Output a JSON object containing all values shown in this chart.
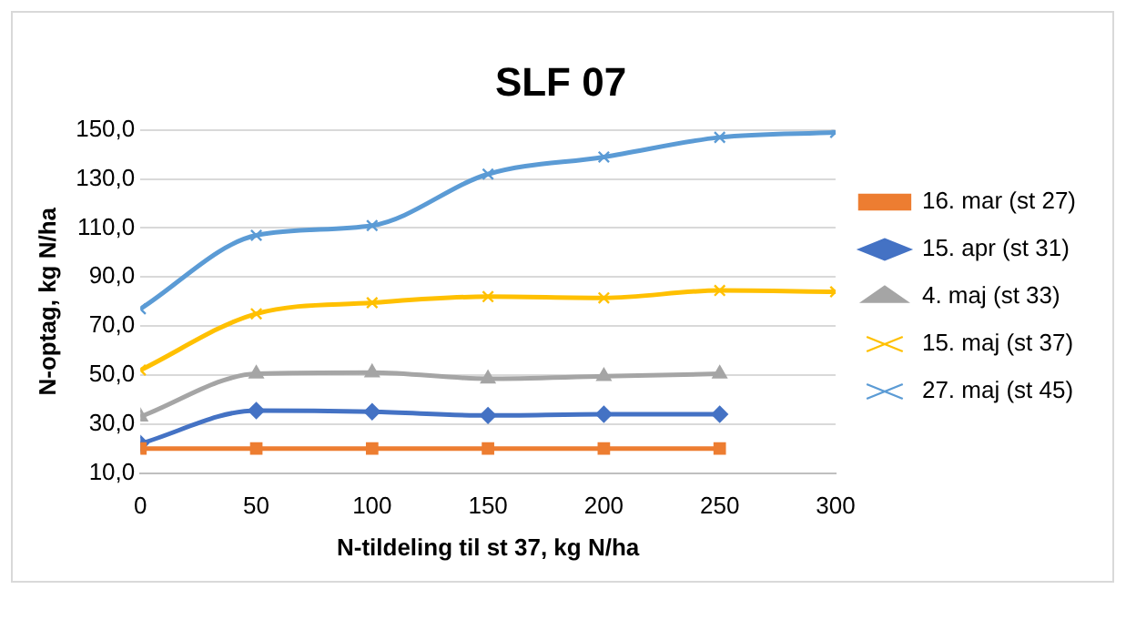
{
  "chart_data": {
    "type": "line",
    "title": "SLF 07",
    "xlabel": "N-tildeling til st 37, kg N/ha",
    "ylabel": "N-optag, kg N/ha",
    "x": [
      0,
      50,
      100,
      150,
      200,
      250,
      300
    ],
    "xlim": [
      0,
      300
    ],
    "xticks": [
      0,
      50,
      100,
      150,
      200,
      250,
      300
    ],
    "ylim": [
      10,
      150
    ],
    "yticks": [
      {
        "value": 10,
        "label": "10,0"
      },
      {
        "value": 30,
        "label": "30,0"
      },
      {
        "value": 50,
        "label": "50,0"
      },
      {
        "value": 70,
        "label": "70,0"
      },
      {
        "value": 90,
        "label": "90,0"
      },
      {
        "value": 110,
        "label": "110,0"
      },
      {
        "value": 130,
        "label": "130,0"
      },
      {
        "value": 150,
        "label": "150,0"
      }
    ],
    "grid": "y",
    "legend": "right",
    "series": [
      {
        "name": "16. mar (st 27)",
        "color": "#ed7d31",
        "marker": "square",
        "values": [
          20,
          20,
          20,
          20,
          20,
          20,
          null
        ]
      },
      {
        "name": "15. apr (st 31)",
        "color": "#4472c4",
        "marker": "diamond",
        "values": [
          22,
          35.5,
          35,
          33.5,
          34,
          34,
          null
        ]
      },
      {
        "name": "4. maj (st 33)",
        "color": "#a5a5a5",
        "marker": "triangle",
        "values": [
          33,
          50.5,
          51,
          48.5,
          49.5,
          50.5,
          null
        ]
      },
      {
        "name": "15. maj (st 37)",
        "color": "#ffc000",
        "marker": "cross",
        "values": [
          52,
          75,
          79.5,
          82,
          81.5,
          84.5,
          84
        ]
      },
      {
        "name": "27. maj (st 45)",
        "color": "#5b9bd5",
        "marker": "cross",
        "values": [
          77,
          107,
          111,
          132,
          139,
          147,
          149
        ]
      }
    ]
  }
}
